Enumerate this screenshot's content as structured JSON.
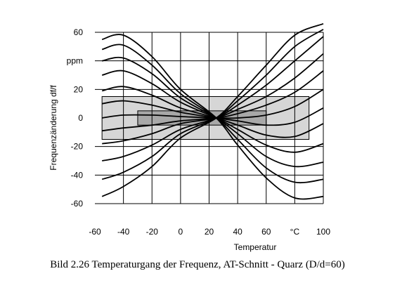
{
  "caption": "Bild 2.26  Temperaturgang der Frequenz, AT-Schnitt - Quarz (D/d=60)",
  "chart_data": {
    "type": "line",
    "title": "",
    "xlabel": "Temperatur",
    "ylabel": "Frequenzänderung df/f",
    "x_unit": "°C",
    "y_unit": "ppm",
    "xlim": [
      -60,
      100
    ],
    "ylim": [
      -60,
      60
    ],
    "x_ticks": [
      -60,
      -40,
      -20,
      0,
      20,
      40,
      60,
      80,
      100
    ],
    "x_tick_labels": [
      "-60",
      "-40",
      "-20",
      "0",
      "20",
      "40",
      "60",
      "°C",
      "100"
    ],
    "y_ticks": [
      60,
      40,
      20,
      0,
      -20,
      -40,
      -60
    ],
    "y_tick_labels": [
      "60",
      "ppm",
      "20",
      "0",
      "-20",
      "-40",
      "-60"
    ],
    "grid": true,
    "bands": [
      {
        "name": "outer",
        "x": [
          -55,
          90
        ],
        "y": [
          -15,
          15
        ],
        "fill": "#d6d6d6"
      },
      {
        "name": "inner",
        "x": [
          -30,
          60
        ],
        "y": [
          -5,
          5
        ],
        "fill": "#a8a8a8"
      }
    ],
    "curve_model": "cubic through turnover point (25 °C, 0 ppm)",
    "x_range_curves": [
      -55,
      100
    ],
    "series": [
      {
        "values": [
          [
            -55,
            55
          ],
          [
            -40,
            58
          ],
          [
            -20,
            43
          ],
          [
            0,
            20
          ],
          [
            25,
            0
          ],
          [
            40,
            -19
          ],
          [
            60,
            -42
          ],
          [
            80,
            -56
          ],
          [
            100,
            -55
          ]
        ]
      },
      {
        "values": [
          [
            -55,
            48
          ],
          [
            -40,
            51
          ],
          [
            -20,
            37
          ],
          [
            0,
            17
          ],
          [
            25,
            0
          ],
          [
            40,
            -15
          ],
          [
            60,
            -35
          ],
          [
            80,
            -45
          ],
          [
            100,
            -43
          ]
        ]
      },
      {
        "values": [
          [
            -55,
            40
          ],
          [
            -40,
            42
          ],
          [
            -20,
            31
          ],
          [
            0,
            14
          ],
          [
            25,
            0
          ],
          [
            40,
            -11
          ],
          [
            60,
            -27
          ],
          [
            80,
            -34
          ],
          [
            100,
            -31
          ]
        ]
      },
      {
        "values": [
          [
            -55,
            30
          ],
          [
            -40,
            33
          ],
          [
            -20,
            24
          ],
          [
            0,
            11
          ],
          [
            25,
            0
          ],
          [
            40,
            -8
          ],
          [
            60,
            -19
          ],
          [
            80,
            -24
          ],
          [
            100,
            -18
          ]
        ]
      },
      {
        "values": [
          [
            -55,
            19
          ],
          [
            -40,
            22
          ],
          [
            -20,
            16
          ],
          [
            0,
            7
          ],
          [
            25,
            0
          ],
          [
            40,
            -5
          ],
          [
            60,
            -12
          ],
          [
            80,
            -13
          ],
          [
            100,
            -4
          ]
        ]
      },
      {
        "values": [
          [
            -55,
            10
          ],
          [
            -40,
            12
          ],
          [
            -20,
            9
          ],
          [
            0,
            4
          ],
          [
            25,
            0
          ],
          [
            40,
            -2
          ],
          [
            60,
            -5
          ],
          [
            80,
            -3
          ],
          [
            100,
            7
          ]
        ]
      },
      {
        "values": [
          [
            -55,
            0
          ],
          [
            -40,
            2
          ],
          [
            -20,
            2
          ],
          [
            0,
            1
          ],
          [
            25,
            0
          ],
          [
            40,
            0
          ],
          [
            60,
            2
          ],
          [
            80,
            8
          ],
          [
            100,
            20
          ]
        ]
      },
      {
        "values": [
          [
            -55,
            -9
          ],
          [
            -40,
            -7
          ],
          [
            -20,
            -5
          ],
          [
            0,
            -2
          ],
          [
            25,
            0
          ],
          [
            40,
            3
          ],
          [
            60,
            9
          ],
          [
            80,
            18
          ],
          [
            100,
            33
          ]
        ]
      },
      {
        "values": [
          [
            -55,
            -18
          ],
          [
            -40,
            -16
          ],
          [
            -20,
            -11
          ],
          [
            0,
            -4
          ],
          [
            25,
            0
          ],
          [
            40,
            6
          ],
          [
            60,
            15
          ],
          [
            80,
            28
          ],
          [
            100,
            45
          ]
        ]
      },
      {
        "values": [
          [
            -55,
            -30
          ],
          [
            -40,
            -27
          ],
          [
            -20,
            -19
          ],
          [
            0,
            -8
          ],
          [
            25,
            0
          ],
          [
            40,
            9
          ],
          [
            60,
            23
          ],
          [
            80,
            40
          ],
          [
            100,
            57
          ]
        ]
      },
      {
        "values": [
          [
            -55,
            -43
          ],
          [
            -40,
            -38
          ],
          [
            -20,
            -27
          ],
          [
            0,
            -11
          ],
          [
            25,
            0
          ],
          [
            40,
            12
          ],
          [
            60,
            30
          ],
          [
            80,
            50
          ],
          [
            100,
            62
          ]
        ]
      },
      {
        "values": [
          [
            -55,
            -55
          ],
          [
            -40,
            -48
          ],
          [
            -20,
            -34
          ],
          [
            0,
            -14
          ],
          [
            25,
            0
          ],
          [
            40,
            15
          ],
          [
            60,
            37
          ],
          [
            80,
            58
          ],
          [
            100,
            66
          ]
        ]
      }
    ]
  }
}
